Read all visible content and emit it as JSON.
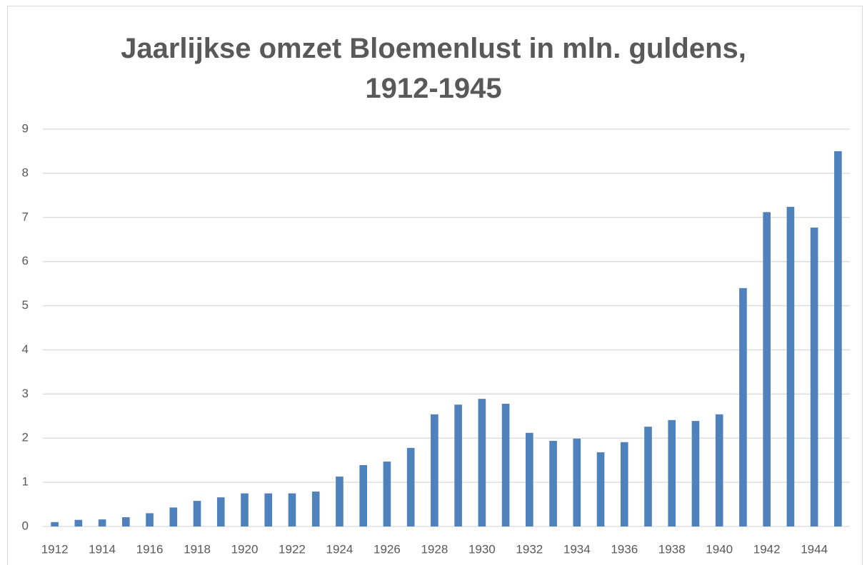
{
  "chart_data": {
    "type": "bar",
    "title": "Jaarlijkse omzet Bloemenlust in mln. guldens, 1912-1945",
    "categories": [
      "1912",
      null,
      "1914",
      null,
      "1916",
      null,
      "1918",
      null,
      "1920",
      null,
      "1922",
      null,
      "1924",
      null,
      "1926",
      null,
      "1928",
      null,
      "1930",
      null,
      "1932",
      null,
      "1934",
      null,
      "1936",
      null,
      "1938",
      null,
      "1940",
      null,
      "1942",
      null,
      "1944",
      null
    ],
    "values": [
      0.1,
      0.15,
      0.16,
      0.21,
      0.3,
      0.43,
      0.58,
      0.66,
      0.75,
      0.75,
      0.75,
      0.79,
      1.13,
      1.39,
      1.47,
      1.78,
      2.54,
      2.76,
      2.89,
      2.78,
      2.12,
      1.94,
      1.99,
      1.68,
      1.91,
      2.26,
      2.41,
      2.39,
      2.54,
      5.4,
      7.12,
      7.24,
      6.77,
      8.5
    ],
    "color": "#4f81bd",
    "ylim": [
      0,
      9
    ],
    "yticks": [
      0,
      1,
      2,
      3,
      4,
      5,
      6,
      7,
      8,
      9
    ],
    "grid": true
  }
}
